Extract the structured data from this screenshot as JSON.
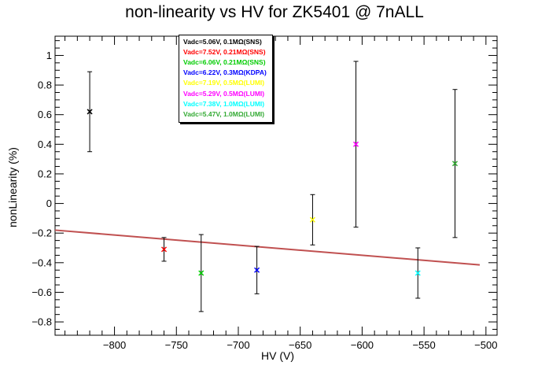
{
  "title": "non-linearity vs HV for ZK5401 @ 7nALL",
  "chart_data": {
    "type": "scatter",
    "title": "non-linearity vs HV for ZK5401 @ 7nALL",
    "xlabel": "HV (V)",
    "ylabel": "nonLinearity (%)",
    "xlim": [
      -848,
      -491
    ],
    "ylim": [
      -0.89,
      1.13
    ],
    "x_ticks": [
      -800,
      -750,
      -700,
      -650,
      -600,
      -550,
      -500
    ],
    "y_ticks": [
      -0.8,
      -0.6,
      -0.4,
      -0.2,
      0,
      0.2,
      0.4,
      0.6,
      0.8,
      1
    ],
    "grid": false,
    "legend_position": "top-left",
    "series": [
      {
        "name": "Vadc=5.06V, 0.1MΩ(SNS)",
        "color": "#000000",
        "x": -820,
        "y": 0.62,
        "err": 0.27
      },
      {
        "name": "Vadc=7.52V, 0.21MΩ(SNS)",
        "color": "#ff0000",
        "x": -760,
        "y": -0.31,
        "err": 0.08
      },
      {
        "name": "Vadc=6.06V, 0.21MΩ(SNS)",
        "color": "#00cc00",
        "x": -730,
        "y": -0.47,
        "err": 0.26
      },
      {
        "name": "Vadc=6.22V, 0.3MΩ(KDPA)",
        "color": "#0000ff",
        "x": -685,
        "y": -0.45,
        "err": 0.16
      },
      {
        "name": "Vadc=7.19V, 0.5MΩ(LUMI)",
        "color": "#ffff00",
        "x": -640,
        "y": -0.11,
        "err": 0.17
      },
      {
        "name": "Vadc=5.29V, 0.5MΩ(LUMI)",
        "color": "#ff00ff",
        "x": -605,
        "y": 0.4,
        "err": 0.56
      },
      {
        "name": "Vadc=7.38V, 1.0MΩ(LUMI)",
        "color": "#00ffff",
        "x": -555,
        "y": -0.47,
        "err": 0.17
      },
      {
        "name": "Vadc=5.47V, 1.0MΩ(LUMI)",
        "color": "#33aa33",
        "x": -525,
        "y": 0.27,
        "err": 0.5
      }
    ],
    "fit": {
      "color": "#c05050",
      "x": [
        -848,
        -505
      ],
      "y": [
        -0.18,
        -0.415
      ]
    }
  }
}
